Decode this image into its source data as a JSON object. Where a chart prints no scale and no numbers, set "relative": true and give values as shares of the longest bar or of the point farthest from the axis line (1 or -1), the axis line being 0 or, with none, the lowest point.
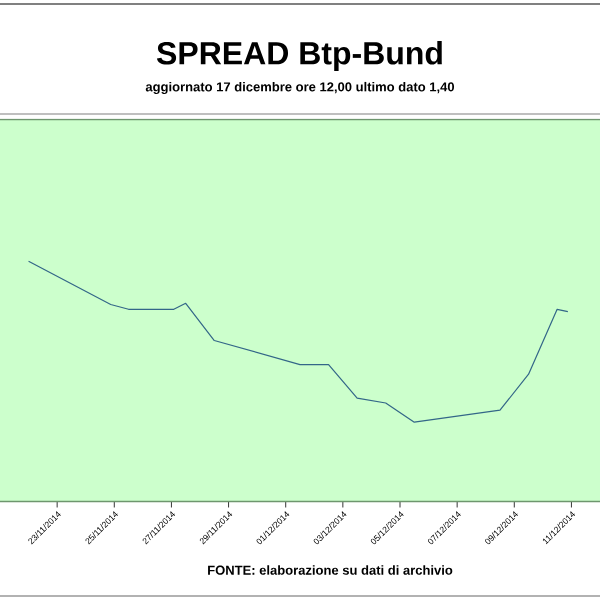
{
  "chart_data": {
    "type": "line",
    "title": "SPREAD Btp-Bund",
    "subtitle": "aggiornato 17 dicembre ore 12,00  ultimo dato  1,40",
    "annotations": [
      "FONTE: elaborazione su dati di archivio"
    ],
    "relative": true,
    "x": [
      "2014-11-22T00:00",
      "2014-11-24T21:00",
      "2014-11-25T12:00",
      "2014-11-27T02:00",
      "2014-11-27T12:00",
      "2014-11-28T12:00",
      "2014-12-01T12:00",
      "2014-12-02T12:00",
      "2014-12-03T12:00",
      "2014-12-04T12:00",
      "2014-12-05T12:00",
      "2014-12-08T12:00",
      "2014-12-09T12:00",
      "2014-12-10T12:00",
      "2014-12-10T21:00"
    ],
    "series": [
      {
        "color": "#336688",
        "values": [
          1.0,
          0.82,
          0.8,
          0.8,
          0.825,
          0.67,
          0.57,
          0.57,
          0.43,
          0.41,
          0.33,
          0.38,
          0.53,
          0.8,
          0.79
        ]
      }
    ],
    "xlim": [
      "2014-11-21T00:00",
      "2014-12-12T00:00"
    ],
    "xticks": [
      {
        "value": "2014-11-23",
        "label": "23/11/2014"
      },
      {
        "value": "2014-11-25",
        "label": "25/11/2014"
      },
      {
        "value": "2014-11-27",
        "label": "27/11/2014"
      },
      {
        "value": "2014-11-29",
        "label": "29/11/2014"
      },
      {
        "value": "2014-12-01",
        "label": "01/12/2014"
      },
      {
        "value": "2014-12-03",
        "label": "03/12/2014"
      },
      {
        "value": "2014-12-05",
        "label": "05/12/2014"
      },
      {
        "value": "2014-12-07",
        "label": "07/12/2014"
      },
      {
        "value": "2014-12-09",
        "label": "09/12/2014"
      },
      {
        "value": "2014-12-11",
        "label": "11/12/2014"
      }
    ]
  }
}
